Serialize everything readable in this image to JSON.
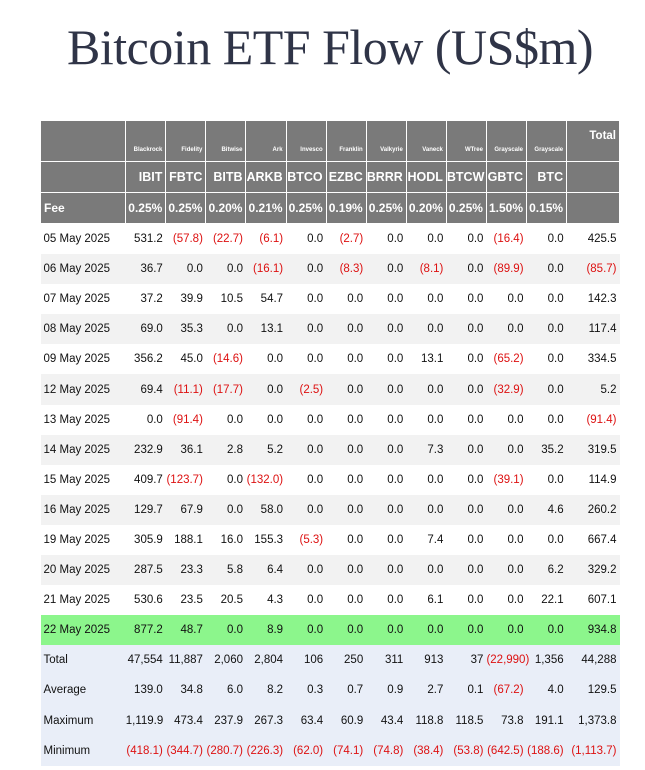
{
  "title": "Bitcoin ETF Flow (US$m)",
  "issuers": [
    "Blackrock",
    "Fidelity",
    "Bitwise",
    "Ark",
    "Invesco",
    "Franklin",
    "Valkyrie",
    "Vaneck",
    "WTree",
    "Grayscale",
    "Grayscale"
  ],
  "total_label": "Total",
  "tickers": [
    "IBIT",
    "FBTC",
    "BITB",
    "ARKB",
    "BTCO",
    "EZBC",
    "BRRR",
    "HODL",
    "BTCW",
    "GBTC",
    "BTC"
  ],
  "fee_label": "Fee",
  "fees": [
    "0.25%",
    "0.25%",
    "0.20%",
    "0.21%",
    "0.25%",
    "0.19%",
    "0.25%",
    "0.20%",
    "0.25%",
    "1.50%",
    "0.15%"
  ],
  "rows": [
    {
      "date": "05 May 2025",
      "values": [
        "531.2",
        "(57.8)",
        "(22.7)",
        "(6.1)",
        "0.0",
        "(2.7)",
        "0.0",
        "0.0",
        "0.0",
        "(16.4)",
        "0.0"
      ],
      "total": "425.5"
    },
    {
      "date": "06 May 2025",
      "values": [
        "36.7",
        "0.0",
        "0.0",
        "(16.1)",
        "0.0",
        "(8.3)",
        "0.0",
        "(8.1)",
        "0.0",
        "(89.9)",
        "0.0"
      ],
      "total": "(85.7)"
    },
    {
      "date": "07 May 2025",
      "values": [
        "37.2",
        "39.9",
        "10.5",
        "54.7",
        "0.0",
        "0.0",
        "0.0",
        "0.0",
        "0.0",
        "0.0",
        "0.0"
      ],
      "total": "142.3"
    },
    {
      "date": "08 May 2025",
      "values": [
        "69.0",
        "35.3",
        "0.0",
        "13.1",
        "0.0",
        "0.0",
        "0.0",
        "0.0",
        "0.0",
        "0.0",
        "0.0"
      ],
      "total": "117.4"
    },
    {
      "date": "09 May 2025",
      "values": [
        "356.2",
        "45.0",
        "(14.6)",
        "0.0",
        "0.0",
        "0.0",
        "0.0",
        "13.1",
        "0.0",
        "(65.2)",
        "0.0"
      ],
      "total": "334.5"
    },
    {
      "date": "12 May 2025",
      "values": [
        "69.4",
        "(11.1)",
        "(17.7)",
        "0.0",
        "(2.5)",
        "0.0",
        "0.0",
        "0.0",
        "0.0",
        "(32.9)",
        "0.0"
      ],
      "total": "5.2"
    },
    {
      "date": "13 May 2025",
      "values": [
        "0.0",
        "(91.4)",
        "0.0",
        "0.0",
        "0.0",
        "0.0",
        "0.0",
        "0.0",
        "0.0",
        "0.0",
        "0.0"
      ],
      "total": "(91.4)"
    },
    {
      "date": "14 May 2025",
      "values": [
        "232.9",
        "36.1",
        "2.8",
        "5.2",
        "0.0",
        "0.0",
        "0.0",
        "7.3",
        "0.0",
        "0.0",
        "35.2"
      ],
      "total": "319.5"
    },
    {
      "date": "15 May 2025",
      "values": [
        "409.7",
        "(123.7)",
        "0.0",
        "(132.0)",
        "0.0",
        "0.0",
        "0.0",
        "0.0",
        "0.0",
        "(39.1)",
        "0.0"
      ],
      "total": "114.9"
    },
    {
      "date": "16 May 2025",
      "values": [
        "129.7",
        "67.9",
        "0.0",
        "58.0",
        "0.0",
        "0.0",
        "0.0",
        "0.0",
        "0.0",
        "0.0",
        "4.6"
      ],
      "total": "260.2"
    },
    {
      "date": "19 May 2025",
      "values": [
        "305.9",
        "188.1",
        "16.0",
        "155.3",
        "(5.3)",
        "0.0",
        "0.0",
        "7.4",
        "0.0",
        "0.0",
        "0.0"
      ],
      "total": "667.4"
    },
    {
      "date": "20 May 2025",
      "values": [
        "287.5",
        "23.3",
        "5.8",
        "6.4",
        "0.0",
        "0.0",
        "0.0",
        "0.0",
        "0.0",
        "0.0",
        "6.2"
      ],
      "total": "329.2"
    },
    {
      "date": "21 May 2025",
      "values": [
        "530.6",
        "23.5",
        "20.5",
        "4.3",
        "0.0",
        "0.0",
        "0.0",
        "6.1",
        "0.0",
        "0.0",
        "22.1"
      ],
      "total": "607.1"
    },
    {
      "date": "22 May 2025",
      "values": [
        "877.2",
        "48.7",
        "0.0",
        "8.9",
        "0.0",
        "0.0",
        "0.0",
        "0.0",
        "0.0",
        "0.0",
        "0.0"
      ],
      "total": "934.8",
      "highlight": true
    }
  ],
  "summary": [
    {
      "label": "Total",
      "values": [
        "47,554",
        "11,887",
        "2,060",
        "2,804",
        "106",
        "250",
        "311",
        "913",
        "37",
        "(22,990)",
        "1,356"
      ],
      "total": "44,288"
    },
    {
      "label": "Average",
      "values": [
        "139.0",
        "34.8",
        "6.0",
        "8.2",
        "0.3",
        "0.7",
        "0.9",
        "2.7",
        "0.1",
        "(67.2)",
        "4.0"
      ],
      "total": "129.5"
    },
    {
      "label": "Maximum",
      "values": [
        "1,119.9",
        "473.4",
        "237.9",
        "267.3",
        "63.4",
        "60.9",
        "43.4",
        "118.8",
        "118.5",
        "73.8",
        "191.1"
      ],
      "total": "1,373.8"
    },
    {
      "label": "Minimum",
      "values": [
        "(418.1)",
        "(344.7)",
        "(280.7)",
        "(226.3)",
        "(62.0)",
        "(74.1)",
        "(74.8)",
        "(38.4)",
        "(53.8)",
        "(642.5)",
        "(188.6)"
      ],
      "total": "(1,113.7)"
    }
  ],
  "colors": {
    "header_bg": "#7a7a7a",
    "negative": "#dd1111",
    "highlight_row": "#8cf68c",
    "summary_bg": "#e9eef8",
    "title": "#2f3447"
  }
}
